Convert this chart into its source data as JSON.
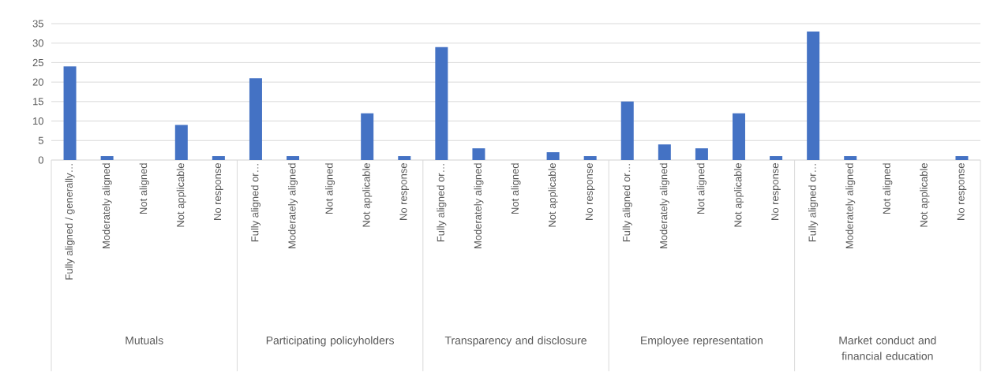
{
  "chart_data": {
    "type": "bar",
    "categories": [
      "Fully aligned / generally…",
      "Moderately aligned",
      "Not aligned",
      "Not applicable",
      "No response",
      "Fully aligned or…",
      "Moderately aligned",
      "Not aligned",
      "Not applicable",
      "No response",
      "Fully aligned or…",
      "Moderately aligned",
      "Not aligned",
      "Not applicable",
      "No response",
      "Fully aligned or…",
      "Moderately aligned",
      "Not aligned",
      "Not applicable",
      "No response",
      "Fully aligned or…",
      "Moderately aligned",
      "Not aligned",
      "Not applicable",
      "No response"
    ],
    "values": [
      24,
      1,
      0,
      9,
      1,
      21,
      1,
      0,
      12,
      1,
      29,
      3,
      0,
      2,
      1,
      15,
      4,
      3,
      12,
      1,
      33,
      1,
      0,
      0,
      1
    ],
    "color": "#4472c4",
    "ylim": [
      0,
      35
    ],
    "yticks": [
      0,
      5,
      10,
      15,
      20,
      25,
      30,
      35
    ],
    "grid": "y",
    "annotations": [
      "Mutuals",
      "Participating policyholders",
      "Transparency and disclosure",
      "Employee representation",
      "Market conduct and financial education"
    ]
  }
}
